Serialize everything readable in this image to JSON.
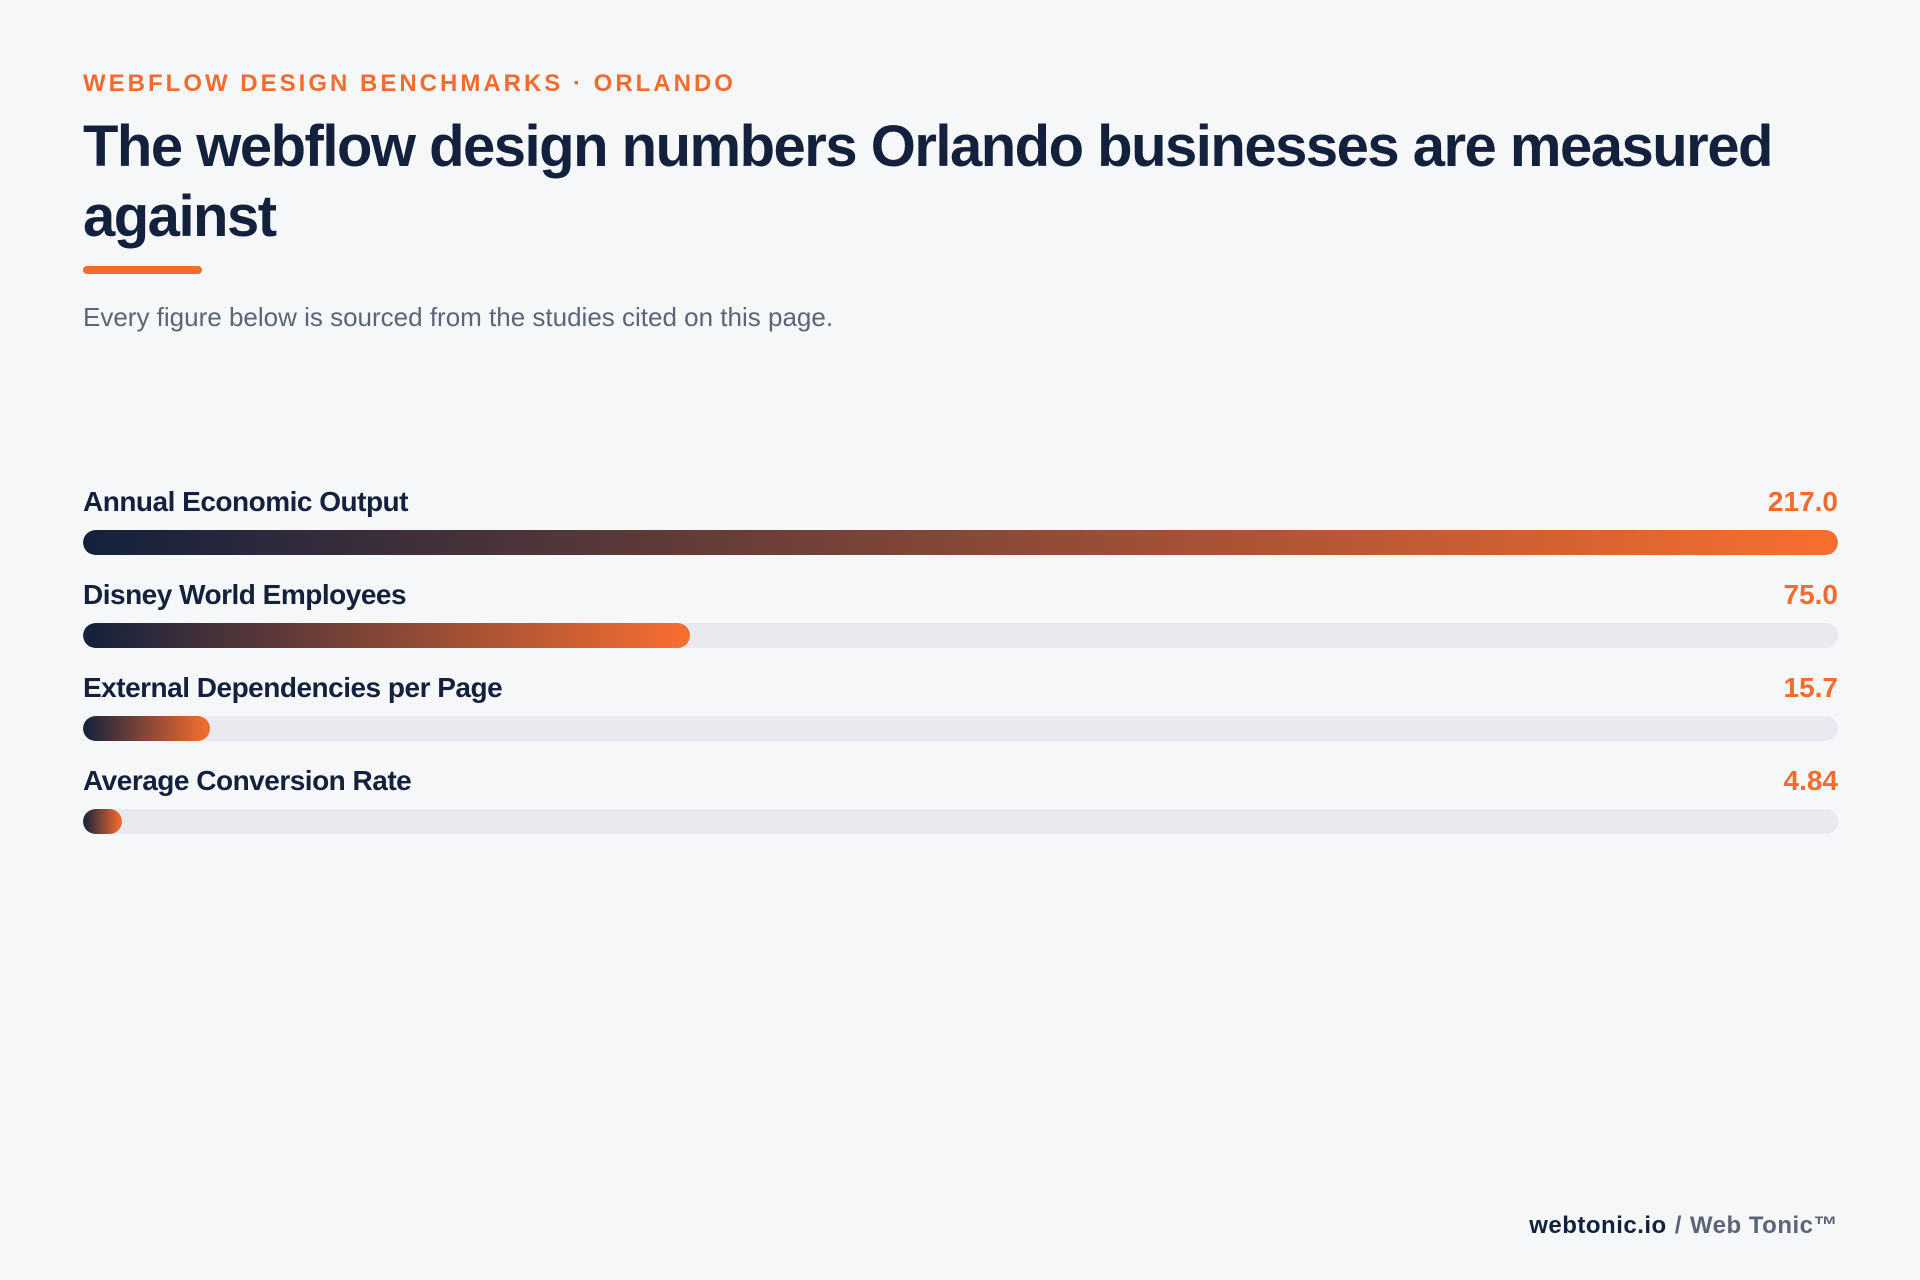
{
  "header": {
    "eyebrow": "WEBFLOW DESIGN BENCHMARKS · ORLANDO",
    "title": "The webflow design numbers Orlando businesses are measured against",
    "subtitle": "Every figure below is sourced from the studies cited on this page."
  },
  "footer": {
    "site": "webtonic.io",
    "separator": "/",
    "brand": "Web Tonic™"
  },
  "colors": {
    "accent": "#f26b2f",
    "navy": "#14213d",
    "track": "#e8eaf0",
    "background": "#f6f7f9"
  },
  "chart_data": {
    "type": "bar",
    "orientation": "horizontal",
    "title": "The webflow design numbers Orlando businesses are measured against",
    "xlim": [
      0,
      217.0
    ],
    "grid": false,
    "legend": "none",
    "categories": [
      "Annual Economic Output",
      "Disney World Employees",
      "External Dependencies per Page",
      "Average Conversion Rate"
    ],
    "values": [
      217.0,
      75.0,
      15.7,
      4.84
    ],
    "value_labels": [
      "217.0",
      "75.0",
      "15.7",
      "4.84"
    ]
  }
}
